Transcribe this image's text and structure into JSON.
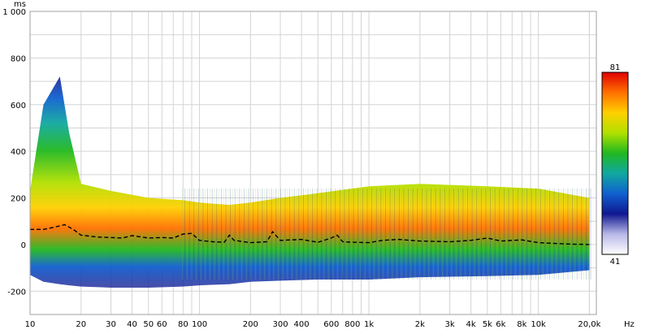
{
  "chart_data": {
    "type": "heatmap",
    "title": "",
    "xlabel": "",
    "ylabel": "",
    "x_unit": "Hz",
    "y_unit": "ms",
    "x_scale": "log",
    "xlim": [
      10,
      22000
    ],
    "ylim": [
      -300,
      1000
    ],
    "x_ticks": [
      {
        "value": 10,
        "label": "10"
      },
      {
        "value": 20,
        "label": "20"
      },
      {
        "value": 30,
        "label": "30"
      },
      {
        "value": 40,
        "label": "40"
      },
      {
        "value": 50,
        "label": "50"
      },
      {
        "value": 60,
        "label": "60"
      },
      {
        "value": 80,
        "label": "80"
      },
      {
        "value": 100,
        "label": "100"
      },
      {
        "value": 200,
        "label": "200"
      },
      {
        "value": 300,
        "label": "300"
      },
      {
        "value": 400,
        "label": "400"
      },
      {
        "value": 600,
        "label": "600"
      },
      {
        "value": 800,
        "label": "800"
      },
      {
        "value": 1000,
        "label": "1k"
      },
      {
        "value": 2000,
        "label": "2k"
      },
      {
        "value": 3000,
        "label": "3k"
      },
      {
        "value": 4000,
        "label": "4k"
      },
      {
        "value": 5000,
        "label": "5k"
      },
      {
        "value": 6000,
        "label": "6k"
      },
      {
        "value": 8000,
        "label": "8k"
      },
      {
        "value": 10000,
        "label": "10k"
      },
      {
        "value": 20000,
        "label": "20,0k"
      }
    ],
    "y_ticks": [
      {
        "value": 1000,
        "label": "1 000"
      },
      {
        "value": 800,
        "label": "800"
      },
      {
        "value": 600,
        "label": "600"
      },
      {
        "value": 400,
        "label": "400"
      },
      {
        "value": 200,
        "label": "200"
      },
      {
        "value": 0,
        "label": "0"
      },
      {
        "value": -200,
        "label": "-200"
      }
    ],
    "colorbar": {
      "max_label": "81",
      "min_label": "41",
      "stops": [
        "#e00000",
        "#ff7000",
        "#ffd000",
        "#b0e000",
        "#20b820",
        "#10a8a0",
        "#1060d0",
        "#101890",
        "#b8b8e8",
        "#ffffff"
      ]
    },
    "grid": true,
    "centroid_line": {
      "style": "dashed",
      "color": "#000000",
      "points": [
        [
          10,
          65
        ],
        [
          12,
          65
        ],
        [
          14,
          75
        ],
        [
          16,
          85
        ],
        [
          18,
          65
        ],
        [
          20,
          40
        ],
        [
          25,
          32
        ],
        [
          30,
          30
        ],
        [
          35,
          28
        ],
        [
          40,
          38
        ],
        [
          50,
          28
        ],
        [
          60,
          30
        ],
        [
          70,
          28
        ],
        [
          80,
          45
        ],
        [
          90,
          48
        ],
        [
          100,
          18
        ],
        [
          120,
          12
        ],
        [
          140,
          10
        ],
        [
          150,
          40
        ],
        [
          160,
          18
        ],
        [
          200,
          8
        ],
        [
          250,
          12
        ],
        [
          270,
          55
        ],
        [
          300,
          18
        ],
        [
          400,
          22
        ],
        [
          500,
          10
        ],
        [
          600,
          28
        ],
        [
          650,
          40
        ],
        [
          700,
          12
        ],
        [
          800,
          10
        ],
        [
          1000,
          8
        ],
        [
          1200,
          18
        ],
        [
          1500,
          22
        ],
        [
          2000,
          15
        ],
        [
          3000,
          12
        ],
        [
          4000,
          18
        ],
        [
          5000,
          28
        ],
        [
          6000,
          15
        ],
        [
          8000,
          20
        ],
        [
          10000,
          8
        ],
        [
          15000,
          2
        ],
        [
          20000,
          0
        ]
      ]
    },
    "energy_band": {
      "description_points_ms": [
        [
          10,
          -130,
          230
        ],
        [
          12,
          -160,
          600
        ],
        [
          15,
          -170,
          720
        ],
        [
          17,
          -175,
          480
        ],
        [
          20,
          -180,
          260
        ],
        [
          30,
          -185,
          230
        ],
        [
          50,
          -185,
          200
        ],
        [
          80,
          -180,
          190
        ],
        [
          100,
          -175,
          180
        ],
        [
          150,
          -170,
          170
        ],
        [
          200,
          -160,
          180
        ],
        [
          300,
          -155,
          200
        ],
        [
          500,
          -150,
          220
        ],
        [
          1000,
          -150,
          250
        ],
        [
          2000,
          -140,
          260
        ],
        [
          5000,
          -135,
          250
        ],
        [
          10000,
          -130,
          240
        ],
        [
          20000,
          -110,
          200
        ]
      ]
    }
  }
}
